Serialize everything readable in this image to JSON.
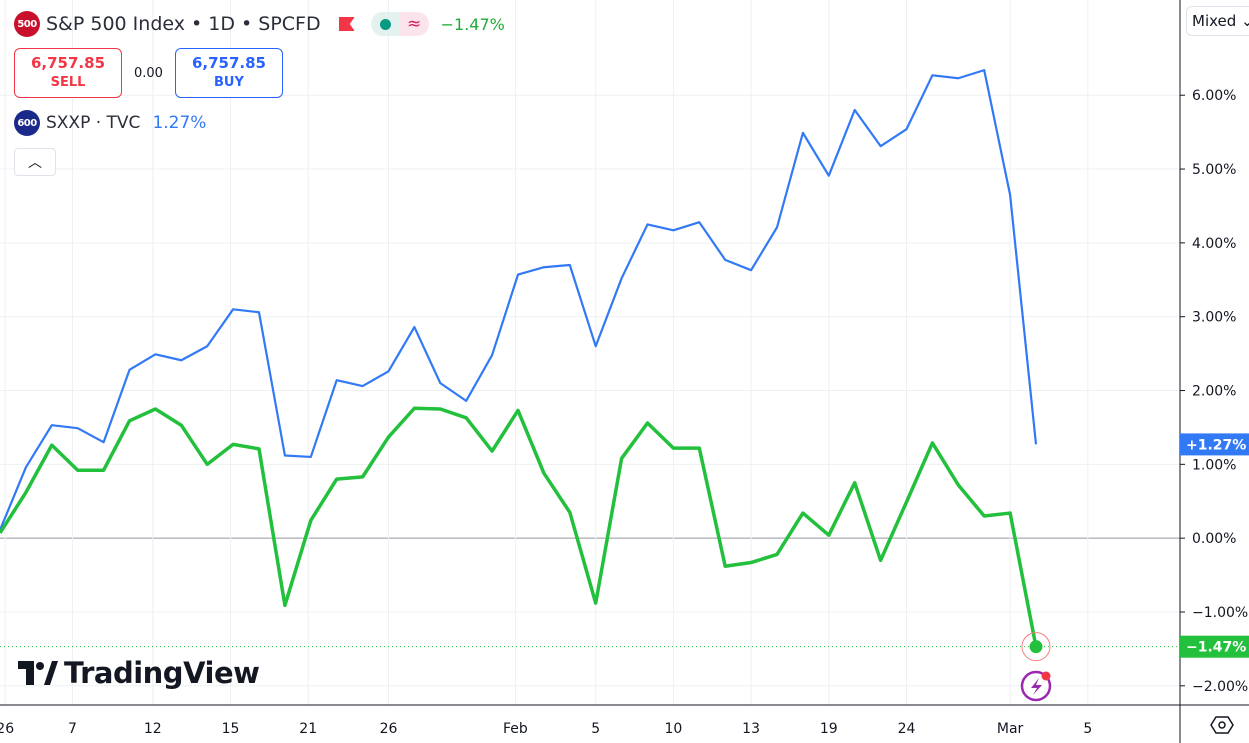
{
  "legend": {
    "main": {
      "badge": "500",
      "title": "S&P 500 Index • 1D • SPCFD",
      "change": "−1.47%"
    },
    "sell": {
      "price": "6,757.85",
      "label": "SELL"
    },
    "spread": "0.00",
    "buy": {
      "price": "6,757.85",
      "label": "BUY"
    },
    "compare": {
      "badge": "600",
      "title": "SXXP · TVC",
      "change": "1.27%"
    }
  },
  "scale_mode": "Mixed",
  "logo": "TradingView",
  "colors": {
    "spx": "#22c03c",
    "sxxp": "#3179f5",
    "spx_badge": "#c8102e",
    "sxxp_badge": "#1a2a8a",
    "grid": "#eef0f3",
    "event": "#9c27b0"
  },
  "chart_data": {
    "type": "line",
    "ylabel": "",
    "xlabel": "",
    "ylim": [
      -2.26,
      7.29
    ],
    "grid": true,
    "y_ticks": [
      "6.00%",
      "5.00%",
      "4.00%",
      "3.00%",
      "2.00%",
      "1.00%",
      "0.00%",
      "−1.00%",
      "−2.00%"
    ],
    "y_tick_values": [
      6,
      5,
      4,
      3,
      2,
      1,
      0,
      -1,
      -2
    ],
    "x_ticks": [
      {
        "label": "26",
        "index": 0.2
      },
      {
        "label": "7",
        "index": 2.8
      },
      {
        "label": "12",
        "index": 5.9
      },
      {
        "label": "15",
        "index": 8.9
      },
      {
        "label": "21",
        "index": 11.9
      },
      {
        "label": "26",
        "index": 15
      },
      {
        "label": "Feb",
        "index": 19.9
      },
      {
        "label": "5",
        "index": 23
      },
      {
        "label": "10",
        "index": 26
      },
      {
        "label": "13",
        "index": 29
      },
      {
        "label": "19",
        "index": 32
      },
      {
        "label": "24",
        "index": 35
      },
      {
        "label": "Mar",
        "index": 39
      },
      {
        "label": "5",
        "index": 42
      }
    ],
    "series": [
      {
        "key": "sxxp",
        "last_label": "+1.27%",
        "values": [
          0.11,
          0.96,
          1.53,
          1.49,
          1.3,
          2.28,
          2.49,
          2.41,
          2.6,
          3.1,
          3.06,
          1.12,
          1.1,
          2.14,
          2.06,
          2.26,
          2.86,
          2.1,
          1.86,
          2.48,
          3.57,
          3.67,
          3.7,
          2.6,
          3.52,
          4.25,
          4.17,
          4.28,
          3.77,
          3.63,
          4.21,
          5.49,
          4.91,
          5.8,
          5.31,
          5.54,
          6.27,
          6.23,
          6.34,
          4.65,
          1.27
        ]
      },
      {
        "key": "spx",
        "last_label": "−1.47%",
        "values": [
          0.07,
          0.62,
          1.26,
          0.92,
          0.92,
          1.59,
          1.75,
          1.53,
          1.0,
          1.27,
          1.21,
          -0.91,
          0.24,
          0.8,
          0.83,
          1.37,
          1.76,
          1.75,
          1.63,
          1.18,
          1.73,
          0.88,
          0.35,
          -0.88,
          1.08,
          1.56,
          1.22,
          1.22,
          -0.38,
          -0.33,
          -0.22,
          0.34,
          0.04,
          0.75,
          -0.3,
          0.49,
          1.29,
          0.72,
          0.3,
          0.34,
          -1.47
        ]
      }
    ]
  }
}
